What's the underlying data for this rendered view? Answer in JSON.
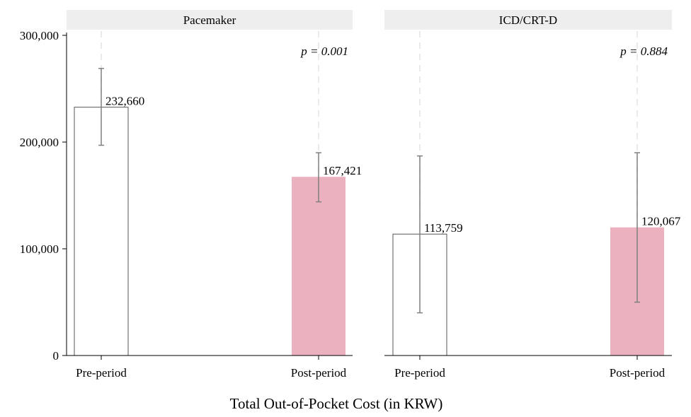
{
  "chart_data": {
    "type": "bar",
    "xlabel": "Total Out-of-Pocket Cost (in KRW)",
    "ylabel": "",
    "ylim": [
      0,
      300000
    ],
    "yticks": [
      0,
      100000,
      200000,
      300000
    ],
    "ytick_labels": [
      "0",
      "100,000",
      "200,000",
      "300,000"
    ],
    "grid": "vertical dashed lines at each category",
    "colors": {
      "pre": "#ffffff",
      "post": "#ecb1bf",
      "bar_outline": "#555555",
      "errorbar": "#808080",
      "strip": "#eeeeee"
    },
    "categories": [
      "Pre-period",
      "Post-period"
    ],
    "panels": [
      {
        "name": "Pacemaker",
        "p_value": "p = 0.001",
        "values": [
          232660,
          167421
        ],
        "value_labels": [
          "232,660",
          "167,421"
        ],
        "ci_low": [
          197000,
          144000
        ],
        "ci_high": [
          269000,
          190000
        ]
      },
      {
        "name": "ICD/CRT-D",
        "p_value": "p = 0.884",
        "values": [
          113759,
          120067
        ],
        "value_labels": [
          "113,759",
          "120,067"
        ],
        "ci_low": [
          40000,
          50000
        ],
        "ci_high": [
          187000,
          190000
        ]
      }
    ]
  }
}
